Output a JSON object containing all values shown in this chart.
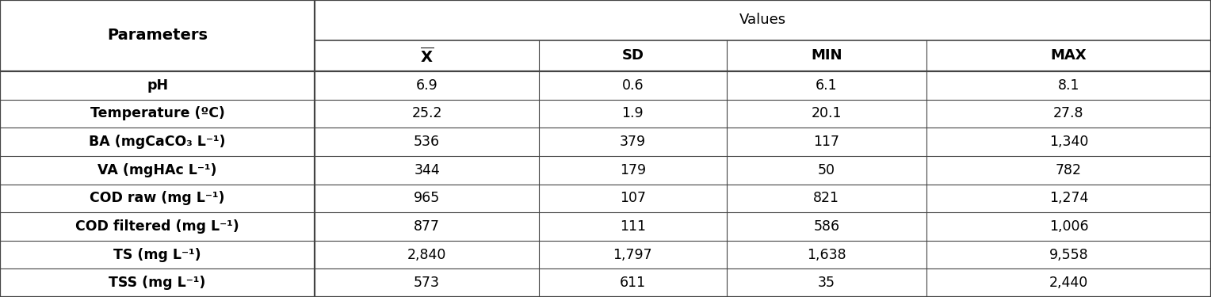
{
  "col_header_1": "Parameters",
  "col_header_2": "Values",
  "sub_headers": [
    "SD",
    "MIN",
    "MAX"
  ],
  "rows": [
    [
      "pH",
      "6.9",
      "0.6",
      "6.1",
      "8.1"
    ],
    [
      "Temperature (ºC)",
      "25.2",
      "1.9",
      "20.1",
      "27.8"
    ],
    [
      "BA (mgCaCO₃ L⁻¹)",
      "536",
      "379",
      "117",
      "1,340"
    ],
    [
      "VA (mgHAc L⁻¹)",
      "344",
      "179",
      "50",
      "782"
    ],
    [
      "COD raw (mg L⁻¹)",
      "965",
      "107",
      "821",
      "1,274"
    ],
    [
      "COD filtered (mg L⁻¹)",
      "877",
      "111",
      "586",
      "1,006"
    ],
    [
      "TS (mg L⁻¹)",
      "2,840",
      "1,797",
      "1,638",
      "9,558"
    ],
    [
      "TSS (mg L⁻¹)",
      "573",
      "611",
      "35",
      "2,440"
    ]
  ],
  "bg_color": "#ffffff",
  "text_color": "#000000",
  "line_color": "#444444",
  "font_size": 12.5,
  "header_font_size": 13,
  "col_bounds": [
    0.0,
    0.26,
    0.445,
    0.6,
    0.765,
    1.0
  ],
  "lw_thick": 1.6,
  "lw_thin": 0.8,
  "lw_medium": 1.2
}
